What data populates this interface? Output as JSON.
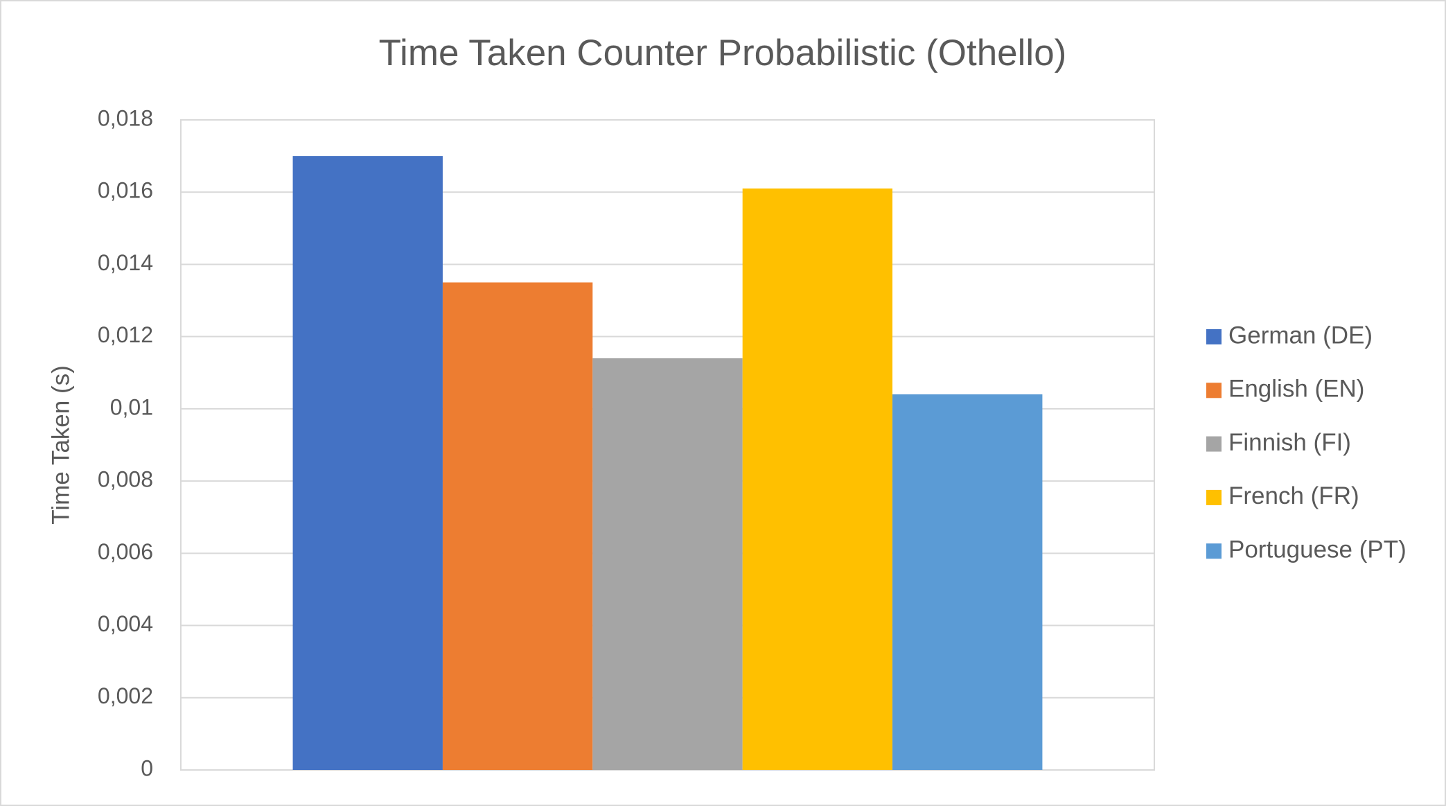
{
  "chart_data": {
    "type": "bar",
    "title": "Time Taken Counter Probabilistic (Othello)",
    "y_label": "Time Taken (s)",
    "categories": [
      null
    ],
    "series": [
      {
        "name": "German (DE)",
        "color": "#4472c4",
        "values": [
          0.017
        ]
      },
      {
        "name": "English (EN)",
        "color": "#ed7d31",
        "values": [
          0.0135
        ]
      },
      {
        "name": "Finnish (FI)",
        "color": "#a5a5a5",
        "values": [
          0.0114
        ]
      },
      {
        "name": "French (FR)",
        "color": "#ffc000",
        "values": [
          0.0161
        ]
      },
      {
        "name": "Portuguese (PT)",
        "color": "#5b9bd5",
        "values": [
          0.0104
        ]
      }
    ],
    "ylim": [
      0,
      0.018
    ],
    "yticks": [
      0,
      {
        "value": 0.002,
        "label": "0,002"
      },
      {
        "value": 0.004,
        "label": "0,004"
      },
      {
        "value": 0.006,
        "label": "0,006"
      },
      {
        "value": 0.008,
        "label": "0,008"
      },
      {
        "value": 0.01,
        "label": "0,01"
      },
      {
        "value": 0.012,
        "label": "0,012"
      },
      {
        "value": 0.014,
        "label": "0,014"
      },
      {
        "value": 0.016,
        "label": "0,016"
      },
      {
        "value": 0.018,
        "label": "0,018"
      }
    ],
    "grid": true,
    "legend": "right"
  }
}
